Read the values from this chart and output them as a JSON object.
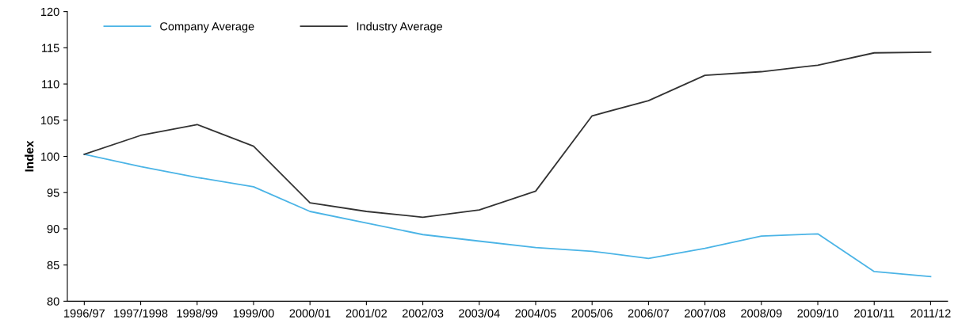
{
  "chart_data": {
    "type": "line",
    "ylabel": "Index",
    "categories": [
      "1996/97",
      "1997/1998",
      "1998/99",
      "1999/00",
      "2000/01",
      "2001/02",
      "2002/03",
      "2003/04",
      "2004/05",
      "2005/06",
      "2006/07",
      "2007/08",
      "2008/09",
      "2009/10",
      "2010/11",
      "2011/12"
    ],
    "series": [
      {
        "name": "Company Average",
        "color": "#4bb4e6",
        "values": [
          100.3,
          98.6,
          97.1,
          95.8,
          92.4,
          90.8,
          89.2,
          88.3,
          87.4,
          86.9,
          85.9,
          87.3,
          89.0,
          89.3,
          84.1,
          83.4
        ]
      },
      {
        "name": "Industry Average",
        "color": "#333333",
        "values": [
          100.3,
          102.9,
          104.4,
          101.4,
          93.6,
          92.4,
          91.6,
          92.6,
          95.2,
          105.6,
          107.7,
          111.2,
          111.7,
          112.6,
          114.3,
          114.4
        ]
      }
    ],
    "ylim": [
      80,
      120
    ],
    "yticks": [
      80,
      85,
      90,
      95,
      100,
      105,
      110,
      115,
      120
    ],
    "grid": false,
    "legend": "top left",
    "marker": "none",
    "line_style": "solid"
  }
}
